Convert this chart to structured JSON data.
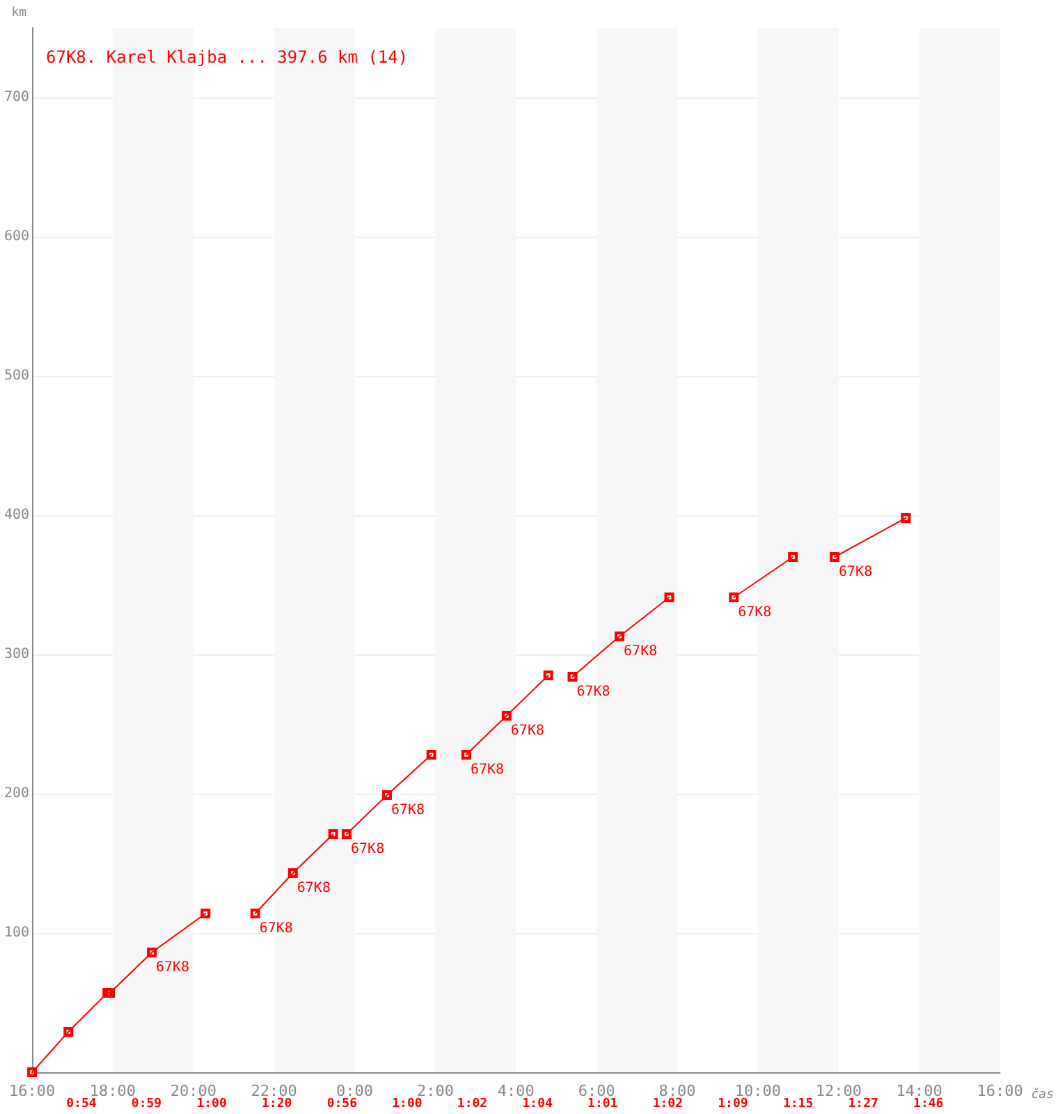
{
  "chart_data": {
    "type": "line",
    "title": "67K8. Karel Klajba ... 397.6 km (14)",
    "xlabel": "čas",
    "ylabel": "km",
    "xlim": [
      "--01-01T16:00",
      "--01-02T16:00"
    ],
    "xticks": [
      {
        "value": "--01-01T16:00",
        "label": "16:00"
      },
      {
        "value": "--01-01T18:00",
        "label": "18:00"
      },
      {
        "value": "--01-01T20:00",
        "label": "20:00"
      },
      {
        "value": "--01-01T22:00",
        "label": "22:00"
      },
      {
        "value": "--01-02T00:00",
        "label": "0:00"
      },
      {
        "value": "--01-02T02:00",
        "label": "2:00"
      },
      {
        "value": "--01-02T04:00",
        "label": "4:00"
      },
      {
        "value": "--01-02T06:00",
        "label": "6:00"
      },
      {
        "value": "--01-02T08:00",
        "label": "8:00"
      },
      {
        "value": "--01-02T10:00",
        "label": "10:00"
      },
      {
        "value": "--01-02T12:00",
        "label": "12:00"
      },
      {
        "value": "--01-02T14:00",
        "label": "14:00"
      },
      {
        "value": "--01-02T16:00",
        "label": "16:00"
      }
    ],
    "ylim": [
      0,
      750
    ],
    "yticks": [
      100,
      200,
      300,
      400,
      500,
      600,
      700
    ],
    "grid": "y",
    "marker": "square",
    "line_style": "solid",
    "series": [
      {
        "color": "#ff0000",
        "x": [
          "--01-01T16:00",
          "--01-01T16:54",
          "--01-01T17:52",
          "--01-01T17:56",
          "--01-01T18:58",
          "--01-01T20:18"
        ],
        "values": [
          0,
          29,
          57,
          57,
          86,
          114
        ]
      },
      {
        "color": "#ff0000",
        "x": [
          "--01-01T21:32",
          "--01-01T22:28",
          "--01-01T23:28"
        ],
        "values": [
          114,
          143,
          171
        ]
      },
      {
        "color": "#ff0000",
        "x": [
          "--01-01T23:48",
          "--01-02T00:48",
          "--01-02T01:54"
        ],
        "values": [
          171,
          199,
          228
        ]
      },
      {
        "color": "#ff0000",
        "x": [
          "--01-02T02:46",
          "--01-02T03:46",
          "--01-02T04:48"
        ],
        "values": [
          228,
          256,
          285
        ]
      },
      {
        "color": "#ff0000",
        "x": [
          "--01-02T05:24",
          "--01-02T06:34",
          "--01-02T07:48"
        ],
        "values": [
          284,
          313,
          341
        ]
      },
      {
        "color": "#ff0000",
        "x": [
          "--01-02T09:24",
          "--01-02T10:52"
        ],
        "values": [
          341,
          370
        ]
      },
      {
        "color": "#ff0000",
        "x": [
          "--01-02T11:54",
          "--01-02T13:40"
        ],
        "values": [
          370,
          398
        ]
      }
    ],
    "bands": [
      {
        "axis": "x",
        "from": "--01-01T18:00",
        "to": "--01-01T20:00",
        "color": "#f7f7f7"
      },
      {
        "axis": "x",
        "from": "--01-01T22:00",
        "to": "--01-02T00:00",
        "color": "#f7f7f7"
      },
      {
        "axis": "x",
        "from": "--01-02T02:00",
        "to": "--01-02T04:00",
        "color": "#f7f7f7"
      },
      {
        "axis": "x",
        "from": "--01-02T06:00",
        "to": "--01-02T08:00",
        "color": "#f7f7f7"
      },
      {
        "axis": "x",
        "from": "--01-02T10:00",
        "to": "--01-02T12:00",
        "color": "#f7f7f7"
      },
      {
        "axis": "x",
        "from": "--01-02T14:00",
        "to": "--01-02T16:00",
        "color": "#f7f7f7"
      }
    ],
    "annotations": [
      {
        "text": "67K8",
        "x": "--01-01T18:58",
        "y": 86
      },
      {
        "text": "67K8",
        "x": "--01-01T21:32",
        "y": 114
      },
      {
        "text": "67K8",
        "x": "--01-01T22:28",
        "y": 143
      },
      {
        "text": "67K8",
        "x": "--01-01T23:48",
        "y": 171
      },
      {
        "text": "67K8",
        "x": "--01-02T00:48",
        "y": 199
      },
      {
        "text": "67K8",
        "x": "--01-02T02:46",
        "y": 228
      },
      {
        "text": "67K8",
        "x": "--01-02T03:46",
        "y": 256
      },
      {
        "text": "67K8",
        "x": "--01-02T05:24",
        "y": 284
      },
      {
        "text": "67K8",
        "x": "--01-02T06:34",
        "y": 313
      },
      {
        "text": "67K8",
        "x": "--01-02T09:24",
        "y": 341
      },
      {
        "text": "67K8",
        "x": "--01-02T11:54",
        "y": 370
      },
      "0:54",
      "0:59",
      "1:00",
      "1:20",
      "0:56",
      "1:00",
      "1:02",
      "1:04",
      "1:01",
      "1:02",
      "1:09",
      "1:15",
      "1:27",
      "1:46"
    ]
  }
}
